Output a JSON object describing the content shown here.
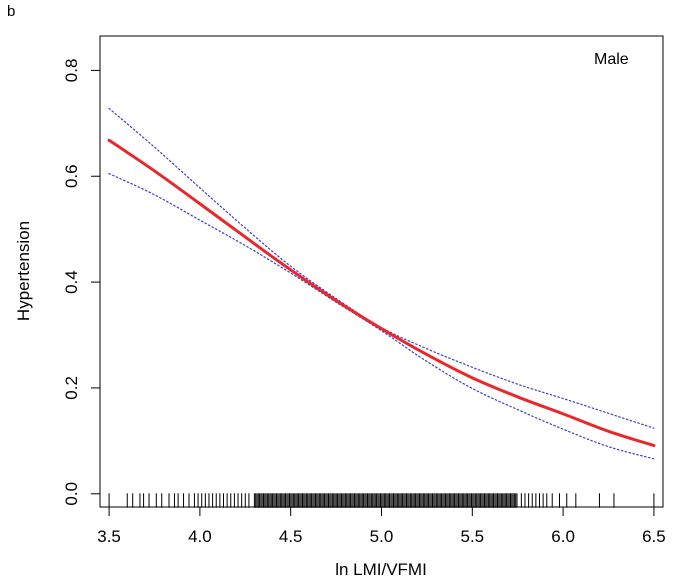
{
  "chart_data": {
    "type": "line",
    "panel_label": "b",
    "annotation": "Male",
    "xlabel": "ln LMI/VFMI",
    "ylabel": "Hypertension",
    "xlim": [
      3.45,
      6.55
    ],
    "ylim": [
      -0.025,
      0.865
    ],
    "x_ticks": [
      3.5,
      4.0,
      4.5,
      5.0,
      5.5,
      6.0,
      6.5
    ],
    "x_tick_labels": [
      "3.5",
      "4.0",
      "4.5",
      "5.0",
      "5.5",
      "6.0",
      "6.5"
    ],
    "y_ticks": [
      0.0,
      0.2,
      0.4,
      0.6,
      0.8
    ],
    "y_tick_labels": [
      "0.0",
      "0.2",
      "0.4",
      "0.6",
      "0.8"
    ],
    "grid": false,
    "colors": {
      "estimate": "#e8282a",
      "confidence": "#3b3bd6",
      "axes": "#000000",
      "rug": "#000000"
    },
    "series": [
      {
        "role": "estimate",
        "style": "solid",
        "x": [
          3.5,
          3.75,
          4.0,
          4.25,
          4.5,
          4.75,
          5.0,
          5.25,
          5.5,
          5.75,
          6.0,
          6.25,
          6.5
        ],
        "y": [
          0.668,
          0.61,
          0.548,
          0.485,
          0.423,
          0.365,
          0.312,
          0.263,
          0.219,
          0.183,
          0.151,
          0.118,
          0.091
        ]
      },
      {
        "role": "upper_ci",
        "style": "dotted",
        "x": [
          3.5,
          3.75,
          4.0,
          4.25,
          4.5,
          4.75,
          5.0,
          5.25,
          5.5,
          5.75,
          6.0,
          6.25,
          6.5
        ],
        "y": [
          0.728,
          0.655,
          0.578,
          0.502,
          0.43,
          0.369,
          0.314,
          0.274,
          0.239,
          0.207,
          0.18,
          0.152,
          0.124
        ]
      },
      {
        "role": "lower_ci",
        "style": "dotted",
        "x": [
          3.5,
          3.75,
          4.0,
          4.25,
          4.5,
          4.75,
          5.0,
          5.25,
          5.5,
          5.75,
          6.0,
          6.25,
          6.5
        ],
        "y": [
          0.605,
          0.565,
          0.517,
          0.469,
          0.417,
          0.362,
          0.308,
          0.25,
          0.199,
          0.159,
          0.122,
          0.089,
          0.066
        ]
      }
    ],
    "rug": {
      "dense_range": [
        4.3,
        5.75
      ],
      "sparse_x": [
        3.5,
        3.6,
        3.63,
        3.67,
        3.69,
        3.72,
        3.76,
        3.79,
        3.83,
        3.86,
        3.88,
        3.91,
        3.94,
        3.97,
        3.99,
        4.01,
        4.03,
        4.05,
        4.07,
        4.09,
        4.11,
        4.13,
        4.15,
        4.17,
        4.19,
        4.21,
        4.23,
        4.25,
        4.27,
        5.77,
        5.79,
        5.81,
        5.83,
        5.85,
        5.87,
        5.89,
        5.91,
        5.94,
        5.98,
        6.02,
        6.07,
        6.2,
        6.28,
        6.5
      ]
    }
  }
}
